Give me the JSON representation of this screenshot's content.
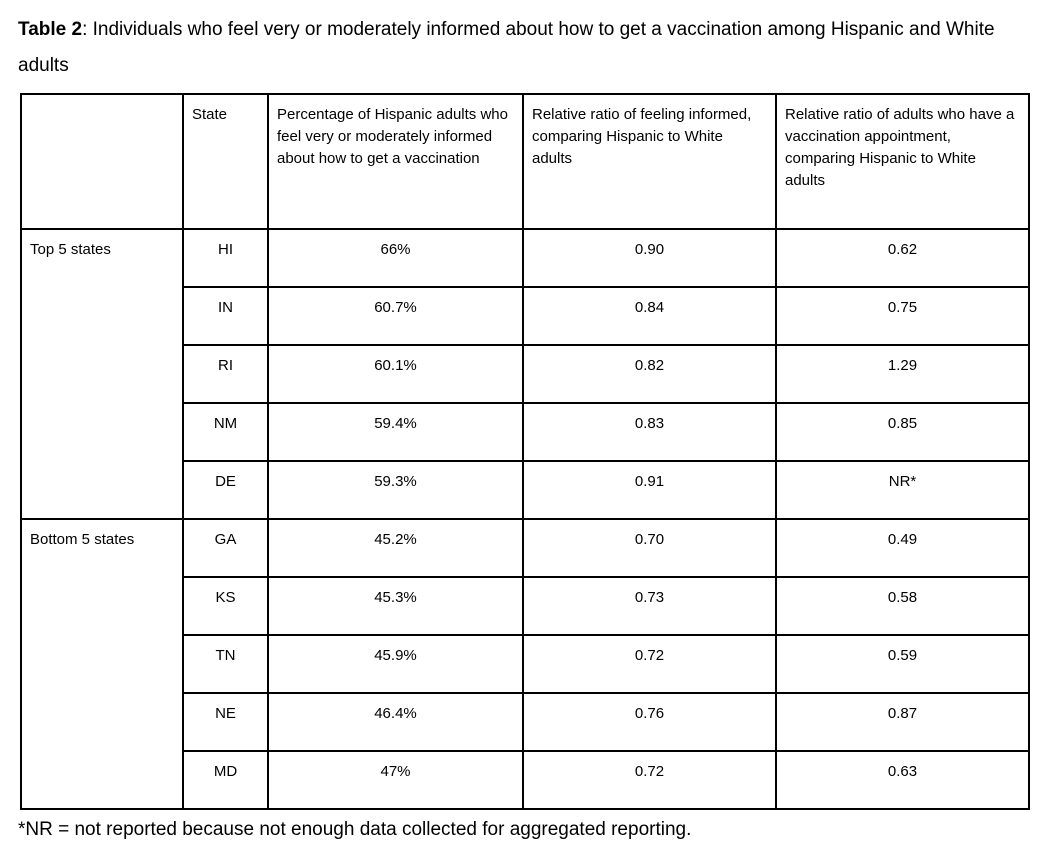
{
  "page": {
    "title_bold": "Table 2",
    "title_rest": ": Individuals who feel very or moderately informed about how to get a vaccination among Hispanic and White adults",
    "footnote": "*NR = not reported because not enough data collected for aggregated reporting."
  },
  "table": {
    "headers": {
      "group": "",
      "state": "State",
      "pct": "Percentage of Hispanic adults who feel very or moderately informed about how to get a vaccination",
      "ratio_informed": "Relative ratio of feeling informed, comparing Hispanic to White adults",
      "ratio_appointment": "Relative ratio of adults who have a vaccination appointment, comparing Hispanic to White adults"
    },
    "groups": [
      {
        "label": "Top 5 states"
      },
      {
        "label": "Bottom 5 states"
      }
    ],
    "rows": [
      {
        "state": "HI",
        "pct": "66%",
        "ratio_informed": "0.90",
        "ratio_appointment": "0.62"
      },
      {
        "state": "IN",
        "pct": "60.7%",
        "ratio_informed": "0.84",
        "ratio_appointment": "0.75"
      },
      {
        "state": "RI",
        "pct": "60.1%",
        "ratio_informed": "0.82",
        "ratio_appointment": "1.29"
      },
      {
        "state": "NM",
        "pct": "59.4%",
        "ratio_informed": "0.83",
        "ratio_appointment": "0.85"
      },
      {
        "state": "DE",
        "pct": "59.3%",
        "ratio_informed": "0.91",
        "ratio_appointment": "NR*"
      },
      {
        "state": "GA",
        "pct": "45.2%",
        "ratio_informed": "0.70",
        "ratio_appointment": "0.49"
      },
      {
        "state": "KS",
        "pct": "45.3%",
        "ratio_informed": "0.73",
        "ratio_appointment": "0.58"
      },
      {
        "state": "TN",
        "pct": "45.9%",
        "ratio_informed": "0.72",
        "ratio_appointment": "0.59"
      },
      {
        "state": "NE",
        "pct": "46.4%",
        "ratio_informed": "0.76",
        "ratio_appointment": "0.87"
      },
      {
        "state": "MD",
        "pct": "47%",
        "ratio_informed": "0.72",
        "ratio_appointment": "0.63"
      }
    ]
  }
}
